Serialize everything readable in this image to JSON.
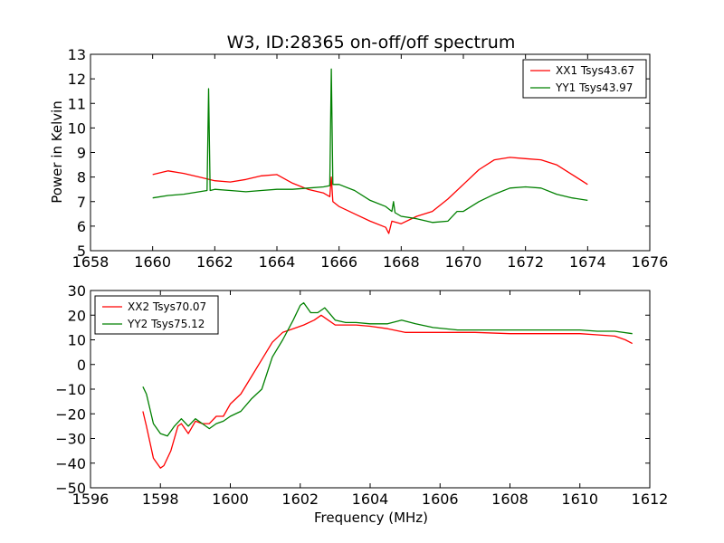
{
  "chart_data": [
    {
      "type": "line",
      "title": "W3, ID:28365 on-off/off spectrum",
      "xlabel": "",
      "ylabel": "Power in Kelvin",
      "xlim": [
        1658,
        1676
      ],
      "ylim": [
        5,
        13
      ],
      "xticks": [
        "1658",
        "1660",
        "1662",
        "1664",
        "1666",
        "1668",
        "1670",
        "1672",
        "1674",
        "1676"
      ],
      "yticks": [
        "5",
        "6",
        "7",
        "8",
        "9",
        "10",
        "11",
        "12",
        "13"
      ],
      "legend_position": "top-right",
      "grid": false,
      "series": [
        {
          "name": "XX1 Tsys43.67",
          "color": "#ff0000",
          "x": [
            1660,
            1660.5,
            1661,
            1661.5,
            1662,
            1662.5,
            1663,
            1663.5,
            1664,
            1664.5,
            1665,
            1665.5,
            1665.7,
            1665.75,
            1665.8,
            1666,
            1666.5,
            1667,
            1667.5,
            1667.6,
            1667.7,
            1668,
            1668.5,
            1669,
            1669.5,
            1670,
            1670.5,
            1671,
            1671.5,
            1672,
            1672.5,
            1673,
            1673.5,
            1674
          ],
          "y": [
            8.1,
            8.25,
            8.15,
            8.0,
            7.85,
            7.8,
            7.9,
            8.05,
            8.1,
            7.75,
            7.5,
            7.35,
            7.2,
            8.0,
            7.0,
            6.8,
            6.5,
            6.2,
            5.95,
            5.7,
            6.2,
            6.1,
            6.4,
            6.6,
            7.1,
            7.7,
            8.3,
            8.7,
            8.8,
            8.75,
            8.7,
            8.5,
            8.1,
            7.7
          ]
        },
        {
          "name": "YY1 Tsys43.97",
          "color": "#008000",
          "x": [
            1660,
            1660.5,
            1661,
            1661.5,
            1661.75,
            1661.8,
            1661.85,
            1662,
            1662.5,
            1663,
            1663.5,
            1664,
            1664.5,
            1665,
            1665.5,
            1665.7,
            1665.75,
            1665.8,
            1666,
            1666.5,
            1667,
            1667.5,
            1667.7,
            1667.75,
            1667.8,
            1668,
            1668.5,
            1669,
            1669.5,
            1669.8,
            1670,
            1670.5,
            1671,
            1671.5,
            1672,
            1672.5,
            1673,
            1673.5,
            1674
          ],
          "y": [
            7.15,
            7.25,
            7.3,
            7.4,
            7.45,
            11.6,
            7.45,
            7.5,
            7.45,
            7.4,
            7.45,
            7.5,
            7.5,
            7.55,
            7.6,
            7.65,
            12.4,
            7.7,
            7.7,
            7.45,
            7.05,
            6.8,
            6.6,
            7.0,
            6.55,
            6.4,
            6.3,
            6.15,
            6.2,
            6.6,
            6.6,
            7.0,
            7.3,
            7.55,
            7.6,
            7.55,
            7.3,
            7.15,
            7.05
          ]
        }
      ]
    },
    {
      "type": "line",
      "title": "",
      "xlabel": "Frequency (MHz)",
      "ylabel": "",
      "xlim": [
        1596,
        1612
      ],
      "ylim": [
        -50,
        30
      ],
      "xticks": [
        "1596",
        "1598",
        "1600",
        "1602",
        "1604",
        "1606",
        "1608",
        "1610",
        "1612"
      ],
      "yticks": [
        "−50",
        "−40",
        "−30",
        "−20",
        "−10",
        "0",
        "10",
        "20",
        "30"
      ],
      "legend_position": "top-left",
      "grid": false,
      "series": [
        {
          "name": "XX2 Tsys70.07",
          "color": "#ff0000",
          "x": [
            1597.5,
            1597.6,
            1597.8,
            1598.0,
            1598.1,
            1598.3,
            1598.5,
            1598.6,
            1598.8,
            1599.0,
            1599.2,
            1599.4,
            1599.6,
            1599.8,
            1600.0,
            1600.3,
            1600.6,
            1600.9,
            1601.2,
            1601.5,
            1601.8,
            1602.1,
            1602.4,
            1602.6,
            1602.8,
            1603.0,
            1603.3,
            1603.6,
            1604.0,
            1604.5,
            1605.0,
            1606.0,
            1607.0,
            1608.0,
            1609.0,
            1610.0,
            1610.5,
            1611.0,
            1611.3,
            1611.5
          ],
          "y": [
            -19,
            -25,
            -38,
            -42,
            -41,
            -35,
            -25,
            -24,
            -28,
            -23,
            -24,
            -24,
            -21,
            -21,
            -16,
            -12,
            -5,
            2,
            9,
            13,
            14.5,
            16,
            18,
            20,
            18,
            16,
            16,
            16,
            15.5,
            14.5,
            13,
            13,
            13,
            12.5,
            12.5,
            12.5,
            12,
            11.5,
            10,
            8.5
          ]
        },
        {
          "name": "YY2 Tsys75.12",
          "color": "#008000",
          "x": [
            1597.5,
            1597.6,
            1597.8,
            1598.0,
            1598.2,
            1598.4,
            1598.6,
            1598.8,
            1599.0,
            1599.2,
            1599.4,
            1599.6,
            1599.8,
            1600.0,
            1600.3,
            1600.6,
            1600.9,
            1601.2,
            1601.5,
            1601.8,
            1602.0,
            1602.1,
            1602.3,
            1602.5,
            1602.7,
            1603.0,
            1603.3,
            1603.6,
            1604.0,
            1604.5,
            1604.9,
            1605.3,
            1605.8,
            1606.5,
            1607.5,
            1608.5,
            1609.5,
            1610.0,
            1610.5,
            1611.0,
            1611.5
          ],
          "y": [
            -9,
            -12,
            -24,
            -28,
            -29,
            -25,
            -22,
            -25,
            -22,
            -24,
            -26,
            -24,
            -23,
            -21,
            -19,
            -14,
            -10,
            3,
            10,
            18,
            24,
            25,
            21,
            21,
            23,
            18,
            17,
            17,
            16.5,
            16.5,
            18,
            16.5,
            15,
            14,
            14,
            14,
            14,
            14,
            13.5,
            13.5,
            12.5
          ]
        }
      ]
    }
  ]
}
